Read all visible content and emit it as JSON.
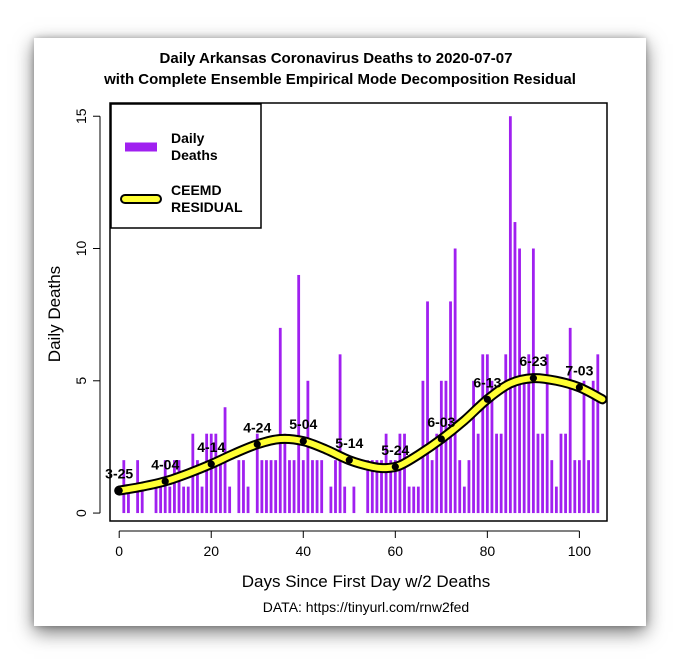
{
  "chart_data": {
    "type": "bar",
    "title": "Daily Arkansas Coronavirus Deaths to 2020-07-07",
    "subtitle": "with Complete Ensemble Empirical Mode Decomposition Residual",
    "xlabel": "Days Since First Day w/2 Deaths",
    "ylabel": "Daily Deaths",
    "source": "DATA: https://tinyurl.com/rnw2fed",
    "xlim": [
      -2,
      106
    ],
    "ylim": [
      -0.3,
      15.5
    ],
    "xticks": [
      0,
      20,
      40,
      60,
      80,
      100
    ],
    "yticks": [
      0,
      5,
      10,
      15
    ],
    "legend": {
      "position": "top-left",
      "entries": [
        {
          "line1": "Daily",
          "line2": "Deaths"
        },
        {
          "line1": "CEEMD",
          "line2": "RESIDUAL"
        }
      ]
    },
    "colors": {
      "bars": "#a020f0",
      "residual_fill": "#ffff33",
      "residual_outline": "#000000",
      "points": "#000000"
    },
    "series": [
      {
        "name": "Daily Deaths",
        "x": [
          0,
          1,
          2,
          3,
          4,
          5,
          6,
          7,
          8,
          9,
          10,
          11,
          12,
          13,
          14,
          15,
          16,
          17,
          18,
          19,
          20,
          21,
          22,
          23,
          24,
          25,
          26,
          27,
          28,
          29,
          30,
          31,
          32,
          33,
          34,
          35,
          36,
          37,
          38,
          39,
          40,
          41,
          42,
          43,
          44,
          45,
          46,
          47,
          48,
          49,
          50,
          51,
          52,
          53,
          54,
          55,
          56,
          57,
          58,
          59,
          60,
          61,
          62,
          63,
          64,
          65,
          66,
          67,
          68,
          69,
          70,
          71,
          72,
          73,
          74,
          75,
          76,
          77,
          78,
          79,
          80,
          81,
          82,
          83,
          84,
          85,
          86,
          87,
          88,
          89,
          90,
          91,
          92,
          93,
          94,
          95,
          96,
          97,
          98,
          99,
          100,
          101,
          102,
          103,
          104,
          105
        ],
        "values": [
          0,
          2,
          1,
          0,
          2,
          1,
          0,
          0,
          1,
          1,
          2,
          1,
          2,
          2,
          1,
          1,
          3,
          2,
          1,
          3,
          3,
          3,
          2,
          4,
          1,
          0,
          2,
          2,
          1,
          0,
          3,
          2,
          2,
          2,
          2,
          7,
          3,
          2,
          2,
          9,
          2,
          5,
          2,
          2,
          2,
          0,
          1,
          2,
          6,
          1,
          0,
          1,
          0,
          0,
          2,
          2,
          2,
          2,
          3,
          2,
          2,
          3,
          3,
          1,
          1,
          1,
          5,
          8,
          2,
          3,
          5,
          5,
          8,
          10,
          2,
          1,
          2,
          5,
          3,
          6,
          6,
          5,
          3,
          3,
          6,
          15,
          11,
          10,
          5,
          6,
          10,
          3,
          3,
          6,
          2,
          1,
          3,
          3,
          7,
          2,
          2,
          5,
          2,
          5,
          6,
          0
        ]
      },
      {
        "name": "CEEMD RESIDUAL",
        "x": [
          0,
          5,
          10,
          15,
          20,
          25,
          30,
          35,
          40,
          45,
          50,
          55,
          58,
          61,
          65,
          70,
          75,
          80,
          85,
          90,
          95,
          100,
          105
        ],
        "values": [
          0.85,
          1.0,
          1.2,
          1.5,
          1.85,
          2.25,
          2.6,
          2.8,
          2.72,
          2.4,
          2.0,
          1.75,
          1.7,
          1.8,
          2.2,
          2.8,
          3.5,
          4.3,
          4.9,
          5.1,
          5.0,
          4.75,
          4.3
        ]
      }
    ],
    "date_markers": [
      {
        "label": "3-25",
        "x": 0,
        "y": 0.85
      },
      {
        "label": "4-04",
        "x": 10,
        "y": 1.2
      },
      {
        "label": "4-14",
        "x": 20,
        "y": 1.85
      },
      {
        "label": "4-24",
        "x": 30,
        "y": 2.6
      },
      {
        "label": "5-04",
        "x": 40,
        "y": 2.72
      },
      {
        "label": "5-14",
        "x": 50,
        "y": 2.0
      },
      {
        "label": "5-24",
        "x": 60,
        "y": 1.75
      },
      {
        "label": "6-03",
        "x": 70,
        "y": 2.8
      },
      {
        "label": "6-13",
        "x": 80,
        "y": 4.3
      },
      {
        "label": "6-23",
        "x": 90,
        "y": 5.1
      },
      {
        "label": "7-03",
        "x": 100,
        "y": 4.75
      }
    ]
  }
}
